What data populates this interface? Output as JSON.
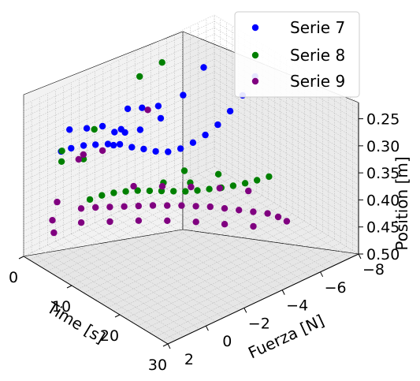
{
  "chart_data": {
    "type": "scatter",
    "projection": "3d",
    "xlabel": "Time [s]",
    "ylabel": "Fuerza [N]",
    "zlabel": "Position [m]",
    "x_ticks": [
      "0",
      "10",
      "20",
      "30"
    ],
    "y_ticks": [
      "2",
      "0",
      "−2",
      "−4",
      "−6",
      "−8"
    ],
    "z_ticks": [
      "0.25",
      "0.30",
      "0.35",
      "0.40",
      "0.45",
      "0.50"
    ],
    "xlim": [
      0,
      30
    ],
    "ylim": [
      2,
      -8
    ],
    "zlim": [
      0.5,
      0.22
    ],
    "z_inverted": true,
    "grid": true,
    "legend_position": "top-right",
    "series": [
      {
        "name": "Serie 7",
        "color": "#0000ff",
        "points": [
          [
            16.8,
            -5.9,
            0.208
          ],
          [
            16.2,
            -5.4,
            0.238
          ],
          [
            15.6,
            -4.9,
            0.262
          ],
          [
            15.0,
            -4.4,
            0.282
          ],
          [
            14.4,
            -3.9,
            0.296
          ],
          [
            13.8,
            -3.4,
            0.305
          ],
          [
            13.2,
            -2.9,
            0.311
          ],
          [
            12.6,
            -2.4,
            0.312
          ],
          [
            12.0,
            -1.9,
            0.306
          ],
          [
            11.5,
            -1.4,
            0.296
          ],
          [
            11.0,
            -0.9,
            0.287
          ],
          [
            10.5,
            -0.4,
            0.276
          ],
          [
            10.0,
            0.1,
            0.27
          ],
          [
            9.4,
            0.6,
            0.266
          ],
          [
            8.9,
            1.1,
            0.262
          ],
          [
            8.3,
            1.6,
            0.262
          ],
          [
            7.8,
            2.0,
            0.264
          ],
          [
            8.1,
            -5.4,
            0.23
          ],
          [
            7.4,
            -4.5,
            0.27
          ],
          [
            6.7,
            -3.5,
            0.3
          ],
          [
            6.0,
            -2.6,
            0.31
          ],
          [
            5.2,
            -1.8,
            0.3
          ],
          [
            4.5,
            -1.0,
            0.285
          ],
          [
            4.0,
            -0.3,
            0.28
          ],
          [
            3.2,
            0.4,
            0.275
          ],
          [
            6.2,
            -1.2,
            0.29
          ],
          [
            6.8,
            -1.6,
            0.294
          ],
          [
            6.2,
            -3.5,
            0.28
          ],
          [
            5.6,
            -2.8,
            0.275
          ],
          [
            5.0,
            -2.2,
            0.27
          ],
          [
            7.6,
            -0.8,
            0.3
          ]
        ]
      },
      {
        "name": "Serie 8",
        "color": "#008000",
        "points": [
          [
            20.5,
            -5.7,
            0.37
          ],
          [
            20.0,
            -5.2,
            0.371
          ],
          [
            19.5,
            -4.7,
            0.371
          ],
          [
            19.0,
            -4.2,
            0.37
          ],
          [
            18.5,
            -3.7,
            0.368
          ],
          [
            18.0,
            -3.2,
            0.365
          ],
          [
            17.5,
            -2.7,
            0.362
          ],
          [
            17.0,
            -2.2,
            0.358
          ],
          [
            16.5,
            -1.7,
            0.352
          ],
          [
            16.0,
            -1.2,
            0.346
          ],
          [
            15.5,
            -0.7,
            0.34
          ],
          [
            15.0,
            -0.2,
            0.334
          ],
          [
            14.5,
            0.3,
            0.33
          ],
          [
            14.0,
            0.8,
            0.327
          ],
          [
            13.5,
            1.3,
            0.326
          ],
          [
            13.0,
            1.8,
            0.328
          ],
          [
            17.5,
            -3.8,
            0.35
          ],
          [
            16.8,
            -2.5,
            0.348
          ],
          [
            15.2,
            -1.5,
            0.34
          ],
          [
            14.8,
            -2.7,
            0.34
          ],
          [
            3.5,
            -3.2,
            0.235
          ],
          [
            4.2,
            -4.2,
            0.222
          ],
          [
            4.0,
            1.0,
            0.3
          ],
          [
            2.8,
            -1.0,
            0.3
          ],
          [
            5.5,
            1.4,
            0.305
          ],
          [
            6.5,
            0.5,
            0.31
          ]
        ]
      },
      {
        "name": "Serie 9",
        "color": "#800080",
        "points": [
          [
            8.0,
            1.0,
            0.385
          ],
          [
            9.0,
            0.5,
            0.386
          ],
          [
            10.0,
            0.0,
            0.388
          ],
          [
            11.0,
            -0.5,
            0.39
          ],
          [
            12.0,
            -1.0,
            0.392
          ],
          [
            13.0,
            -1.5,
            0.394
          ],
          [
            14.0,
            -2.0,
            0.397
          ],
          [
            15.0,
            -2.5,
            0.4
          ],
          [
            16.0,
            -3.0,
            0.404
          ],
          [
            17.0,
            -3.5,
            0.408
          ],
          [
            18.0,
            -4.0,
            0.414
          ],
          [
            19.0,
            -4.5,
            0.42
          ],
          [
            20.0,
            -5.0,
            0.426
          ],
          [
            21.0,
            -5.5,
            0.432
          ],
          [
            22.0,
            -5.8,
            0.438
          ],
          [
            23.0,
            -6.0,
            0.444
          ],
          [
            9.0,
            -1.5,
            0.38
          ],
          [
            11.0,
            -2.5,
            0.386
          ],
          [
            13.0,
            -3.5,
            0.393
          ],
          [
            15.0,
            -4.5,
            0.401
          ],
          [
            17.0,
            -5.5,
            0.412
          ],
          [
            10.0,
            1.5,
            0.392
          ],
          [
            12.0,
            0.5,
            0.396
          ],
          [
            14.0,
            -0.5,
            0.4
          ],
          [
            16.0,
            -1.5,
            0.406
          ],
          [
            18.0,
            -2.5,
            0.414
          ],
          [
            20.0,
            -3.5,
            0.424
          ],
          [
            22.0,
            -4.5,
            0.434
          ],
          [
            4.0,
            1.5,
            0.42
          ],
          [
            3.0,
            1.0,
            0.4
          ],
          [
            3.5,
            0.0,
            0.335
          ],
          [
            4.5,
            -1.0,
            0.33
          ],
          [
            2.5,
            -0.5,
            0.34
          ],
          [
            6.0,
            -3.0,
            0.28
          ],
          [
            5.5,
            1.8,
            0.43
          ]
        ]
      }
    ]
  }
}
